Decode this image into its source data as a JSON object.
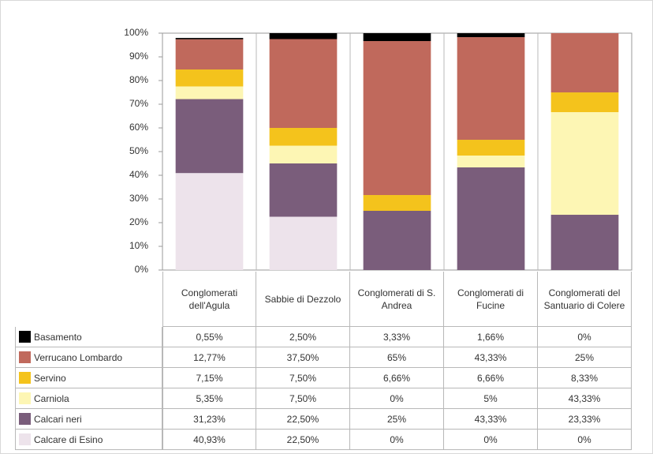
{
  "chart_data": {
    "type": "stacked_bar",
    "categories": [
      "Conglomerati dell'Agula",
      "Sabbie di Dezzolo",
      "Conglomerati di S. Andrea",
      "Conglomerati di Fucine",
      "Conglomerati del Santuario di Colere"
    ],
    "series": [
      {
        "name": "Basamento",
        "color": "#000000",
        "values": [
          0.55,
          2.5,
          3.33,
          1.66,
          0
        ],
        "value_labels": [
          "0,55%",
          "2,50%",
          "3,33%",
          "1,66%",
          "0%"
        ]
      },
      {
        "name": "Verrucano Lombardo",
        "color": "#c0695c",
        "values": [
          12.77,
          37.5,
          65,
          43.33,
          25
        ],
        "value_labels": [
          "12,77%",
          "37,50%",
          "65%",
          "43,33%",
          "25%"
        ]
      },
      {
        "name": "Servino",
        "color": "#f4c31c",
        "values": [
          7.15,
          7.5,
          6.66,
          6.66,
          8.33
        ],
        "value_labels": [
          "7,15%",
          "7,50%",
          "6,66%",
          "6,66%",
          "8,33%"
        ]
      },
      {
        "name": "Carniola",
        "color": "#fdf6b4",
        "values": [
          5.35,
          7.5,
          0,
          5,
          43.33
        ],
        "value_labels": [
          "5,35%",
          "7,50%",
          "0%",
          "5%",
          "43,33%"
        ]
      },
      {
        "name": "Calcari neri",
        "color": "#7a5d7b",
        "values": [
          31.23,
          22.5,
          25,
          43.33,
          23.33
        ],
        "value_labels": [
          "31,23%",
          "22,50%",
          "25%",
          "43,33%",
          "23,33%"
        ]
      },
      {
        "name": "Calcare di Esino",
        "color": "#ede3eb",
        "values": [
          40.93,
          22.5,
          0,
          0,
          0
        ],
        "value_labels": [
          "40,93%",
          "22,50%",
          "0%",
          "0%",
          "0%"
        ]
      }
    ],
    "ylim": [
      0,
      100
    ],
    "yticks": [
      {
        "value": 0,
        "label": "0%"
      },
      {
        "value": 10,
        "label": "10%"
      },
      {
        "value": 20,
        "label": "20%"
      },
      {
        "value": 30,
        "label": "30%"
      },
      {
        "value": 40,
        "label": "40%"
      },
      {
        "value": 50,
        "label": "50%"
      },
      {
        "value": 60,
        "label": "60%"
      },
      {
        "value": 70,
        "label": "70%"
      },
      {
        "value": 80,
        "label": "80%"
      },
      {
        "value": 90,
        "label": "90%"
      },
      {
        "value": 100,
        "label": "100%"
      }
    ]
  }
}
